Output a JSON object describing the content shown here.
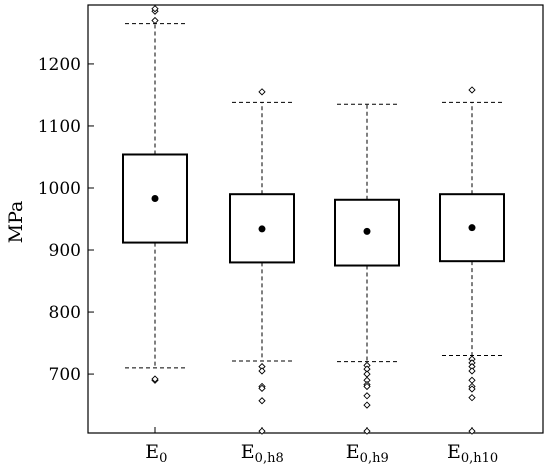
{
  "chart_data": {
    "type": "box",
    "ylabel": "MPa",
    "ylim": [
      605,
      1295
    ],
    "yticks": [
      700,
      800,
      900,
      1000,
      1100,
      1200
    ],
    "categories": [
      {
        "base": "E",
        "sub": "0"
      },
      {
        "base": "E",
        "sub": "0,h8"
      },
      {
        "base": "E",
        "sub": "0,h9"
      },
      {
        "base": "E",
        "sub": "0,h10"
      }
    ],
    "boxes": [
      {
        "whisker_low": 710,
        "q1": 912,
        "mean": 983,
        "q3": 1054,
        "whisker_high": 1265,
        "outliers": [
          690,
          692,
          1270,
          1285,
          1289
        ]
      },
      {
        "whisker_low": 721,
        "q1": 880,
        "mean": 934,
        "q3": 990,
        "whisker_high": 1138,
        "outliers": [
          712,
          705,
          680,
          677,
          657,
          608,
          1155
        ]
      },
      {
        "whisker_low": 720,
        "q1": 875,
        "mean": 930,
        "q3": 981,
        "whisker_high": 1135,
        "outliers": [
          714,
          708,
          700,
          690,
          683,
          680,
          665,
          650,
          608
        ]
      },
      {
        "whisker_low": 730,
        "q1": 882,
        "mean": 936,
        "q3": 990,
        "whisker_high": 1138,
        "outliers": [
          724,
          718,
          712,
          705,
          690,
          680,
          676,
          662,
          608,
          1158
        ]
      }
    ],
    "grid": false
  }
}
